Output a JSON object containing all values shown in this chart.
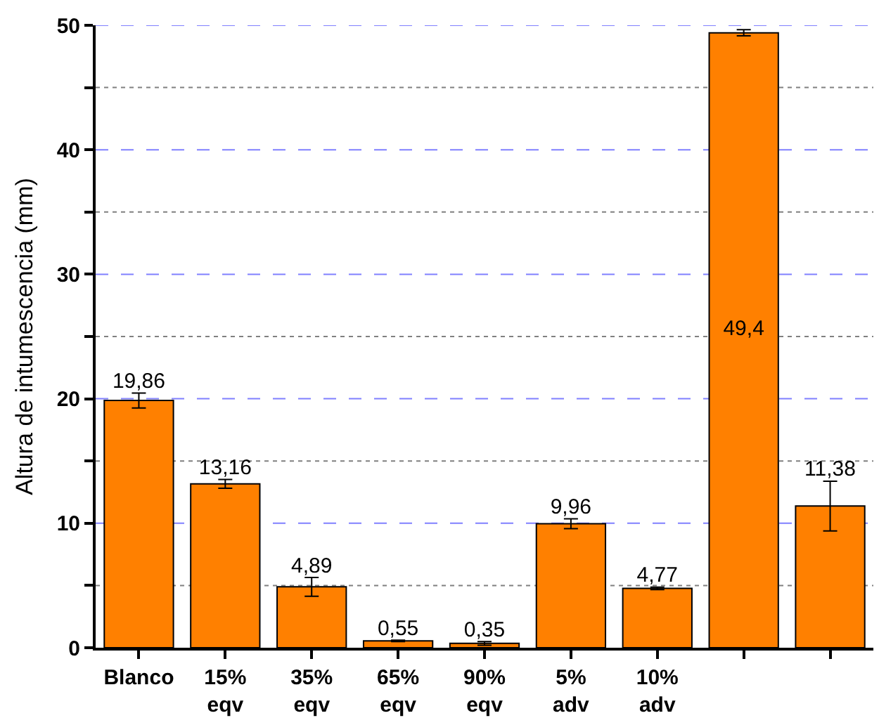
{
  "chart_data": {
    "type": "bar",
    "ylabel": "Altura de intumescencia (mm)",
    "categories": [
      "Blanco",
      "15%\neqv",
      "35%\neqv",
      "65%\neqv",
      "90%\neqv",
      "5%\nadv",
      "10%\nadv",
      null,
      null
    ],
    "values": [
      19.86,
      13.16,
      4.89,
      0.55,
      0.35,
      9.96,
      4.77,
      49.4,
      11.38
    ],
    "value_labels": [
      "19,86",
      "13,16",
      "4,89",
      "0,55",
      "0,35",
      "9,96",
      "4,77",
      "49,4",
      "11,38"
    ],
    "errors": [
      0.6,
      0.35,
      0.75,
      0.05,
      0.15,
      0.4,
      0.1,
      0.25,
      2.0
    ],
    "color": "#ff8000",
    "ylim": [
      0,
      50
    ],
    "yticks": [
      0,
      {
        "value": 5,
        "label": null
      },
      10,
      {
        "value": 15,
        "label": null
      },
      20,
      {
        "value": 25,
        "label": null
      },
      30,
      {
        "value": 35,
        "label": null
      },
      40,
      {
        "value": 45,
        "label": null
      },
      50
    ],
    "grid": "y"
  }
}
